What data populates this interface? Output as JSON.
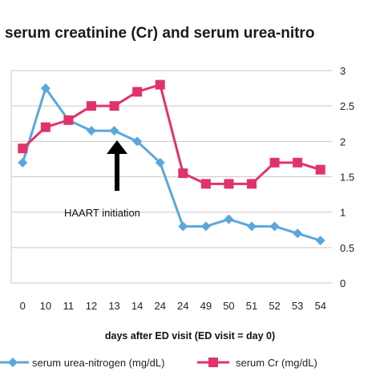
{
  "chart_data": {
    "type": "line",
    "title": "serum creatinine (Cr) and serum urea-nitro",
    "xlabel": "days after ED visit (ED visit = day 0)",
    "categories": [
      "0",
      "10",
      "11",
      "12",
      "13",
      "14",
      "24",
      "24",
      "49",
      "50",
      "51",
      "52",
      "53",
      "54"
    ],
    "ylim": [
      0,
      3
    ],
    "yticks": [
      "0",
      "0.5",
      "1",
      "1.5",
      "2",
      "2.5",
      "3"
    ],
    "grid": true,
    "legend_position": "bottom",
    "series": [
      {
        "name": "serum urea-nitrogen (mg/dL)",
        "color": "#5aa7dd",
        "marker": "diamond",
        "values": [
          1.7,
          2.75,
          2.3,
          2.15,
          2.15,
          2.0,
          1.7,
          0.8,
          0.8,
          0.9,
          0.8,
          0.8,
          0.7,
          0.6
        ]
      },
      {
        "name": "serum Cr (mg/dL)",
        "color": "#e0336a",
        "marker": "square",
        "values": [
          1.9,
          2.2,
          2.3,
          2.5,
          2.5,
          2.7,
          2.8,
          1.55,
          1.4,
          1.4,
          1.4,
          1.7,
          1.7,
          1.6
        ]
      }
    ],
    "annotations": [
      {
        "text": "HAART initiation",
        "arrow_at_category_index": 4,
        "icon": "up-arrow-icon"
      }
    ]
  }
}
